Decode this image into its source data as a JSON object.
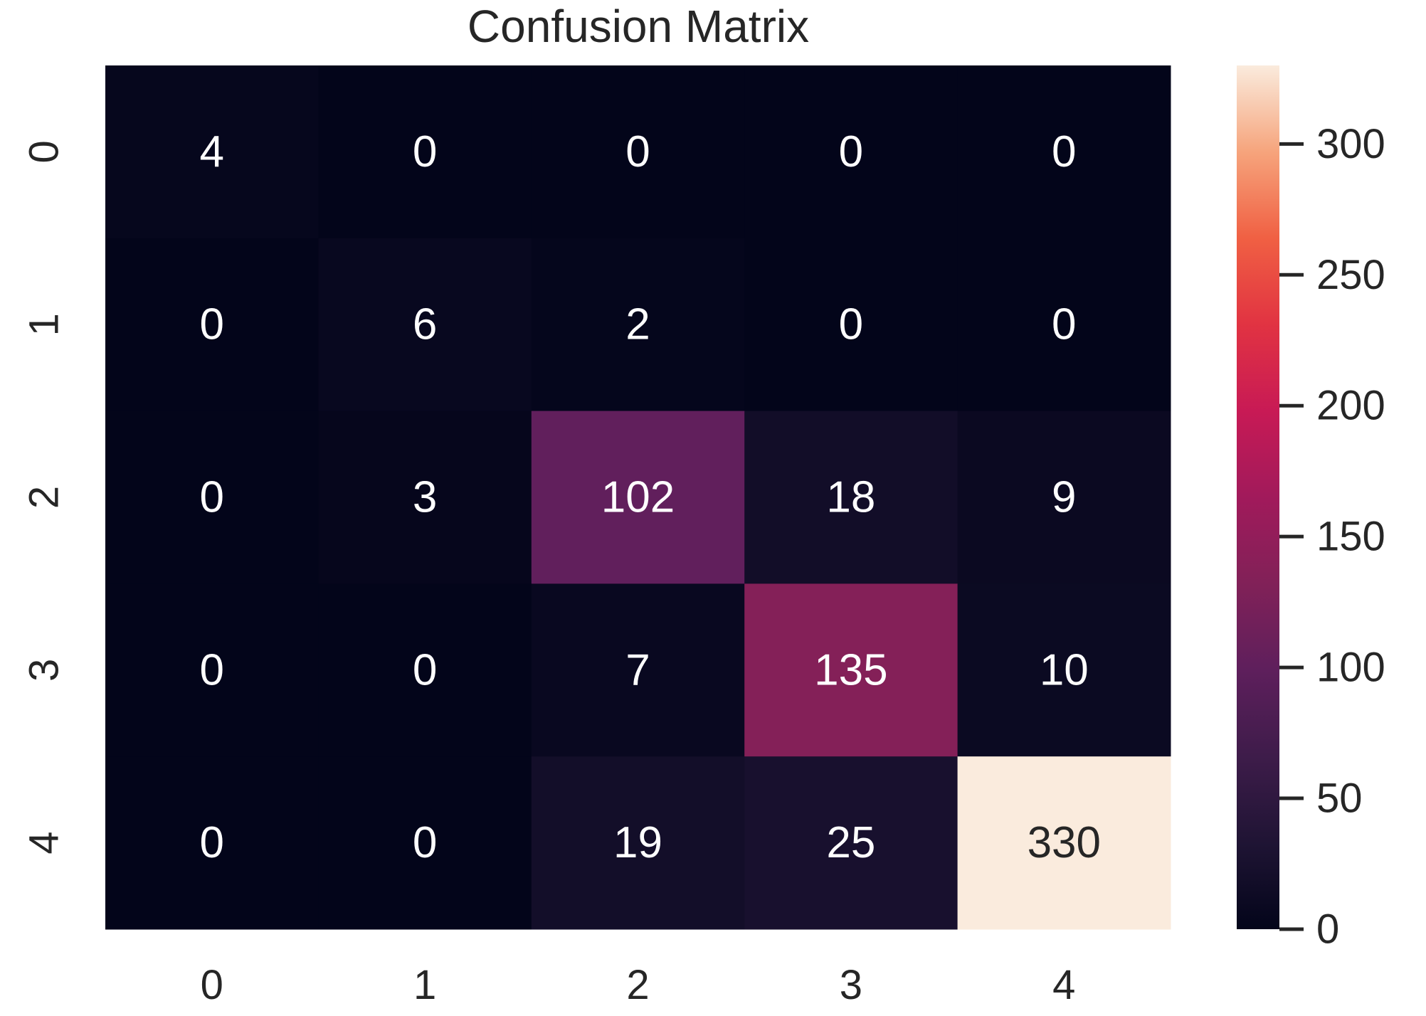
{
  "chart_data": {
    "type": "heatmap",
    "title": "Confusion Matrix",
    "xlabel": "",
    "ylabel": "",
    "x_categories": [
      "0",
      "1",
      "2",
      "3",
      "4"
    ],
    "y_categories": [
      "0",
      "1",
      "2",
      "3",
      "4"
    ],
    "values": [
      [
        4,
        0,
        0,
        0,
        0
      ],
      [
        0,
        6,
        2,
        0,
        0
      ],
      [
        0,
        3,
        102,
        18,
        9
      ],
      [
        0,
        0,
        7,
        135,
        10
      ],
      [
        0,
        0,
        19,
        25,
        330
      ]
    ],
    "colormap": "rocket",
    "colorbar": {
      "range": [
        0,
        330
      ],
      "ticks": [
        0,
        50,
        100,
        150,
        200,
        250,
        300
      ]
    },
    "annotation_colors": {
      "light_background": "#262626",
      "dark_background": "#ffffff"
    },
    "grid": false
  }
}
